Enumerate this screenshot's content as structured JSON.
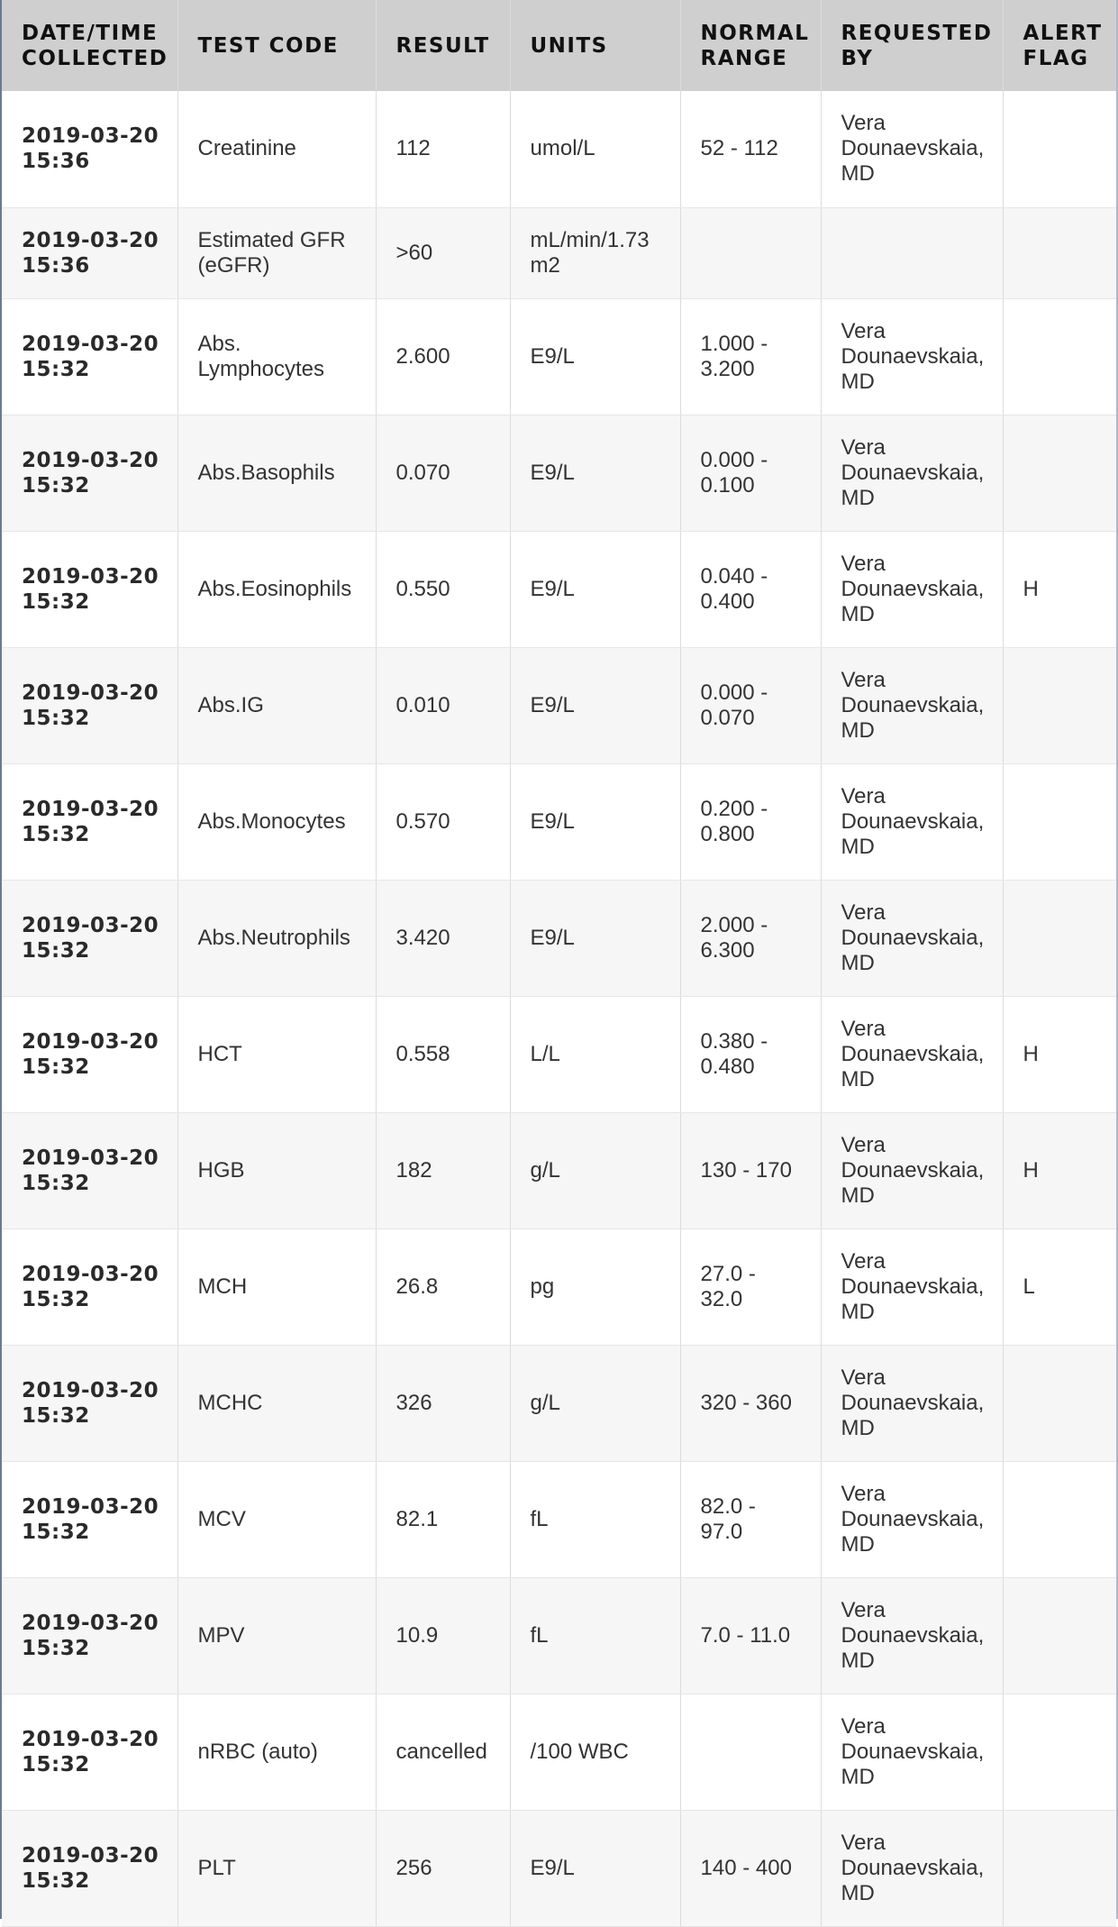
{
  "table": {
    "headers": [
      [
        "DATE/TIME",
        "COLLECTED"
      ],
      [
        "TEST CODE"
      ],
      [
        "RESULT"
      ],
      [
        "UNITS"
      ],
      [
        "NORMAL",
        "RANGE"
      ],
      [
        "REQUESTED",
        "BY"
      ],
      [
        "ALERT",
        "FLAG"
      ]
    ],
    "rows": [
      {
        "date": [
          "2019-03-20",
          "15:36"
        ],
        "test": [
          "Creatinine"
        ],
        "result": "112",
        "units": [
          "umol/L"
        ],
        "range": [
          "52 - 112"
        ],
        "requested": [
          "Vera",
          "Dounaevskaia,",
          "MD"
        ],
        "flag": ""
      },
      {
        "date": [
          "2019-03-20",
          "15:36"
        ],
        "test": [
          "Estimated GFR",
          "(eGFR)"
        ],
        "result": ">60",
        "units": [
          "mL/min/1.73",
          "m2"
        ],
        "range": [
          ""
        ],
        "requested": [
          ""
        ],
        "flag": ""
      },
      {
        "date": [
          "2019-03-20",
          "15:32"
        ],
        "test": [
          "Abs.",
          "Lymphocytes"
        ],
        "result": "2.600",
        "units": [
          "E9/L"
        ],
        "range": [
          "1.000 -",
          "3.200"
        ],
        "requested": [
          "Vera",
          "Dounaevskaia,",
          "MD"
        ],
        "flag": ""
      },
      {
        "date": [
          "2019-03-20",
          "15:32"
        ],
        "test": [
          "Abs.Basophils"
        ],
        "result": "0.070",
        "units": [
          "E9/L"
        ],
        "range": [
          "0.000 -",
          "0.100"
        ],
        "requested": [
          "Vera",
          "Dounaevskaia,",
          "MD"
        ],
        "flag": ""
      },
      {
        "date": [
          "2019-03-20",
          "15:32"
        ],
        "test": [
          "Abs.Eosinophils"
        ],
        "result": "0.550",
        "units": [
          "E9/L"
        ],
        "range": [
          "0.040 -",
          "0.400"
        ],
        "requested": [
          "Vera",
          "Dounaevskaia,",
          "MD"
        ],
        "flag": "H"
      },
      {
        "date": [
          "2019-03-20",
          "15:32"
        ],
        "test": [
          "Abs.IG"
        ],
        "result": "0.010",
        "units": [
          "E9/L"
        ],
        "range": [
          "0.000 -",
          "0.070"
        ],
        "requested": [
          "Vera",
          "Dounaevskaia,",
          "MD"
        ],
        "flag": ""
      },
      {
        "date": [
          "2019-03-20",
          "15:32"
        ],
        "test": [
          "Abs.Monocytes"
        ],
        "result": "0.570",
        "units": [
          "E9/L"
        ],
        "range": [
          "0.200 -",
          "0.800"
        ],
        "requested": [
          "Vera",
          "Dounaevskaia,",
          "MD"
        ],
        "flag": ""
      },
      {
        "date": [
          "2019-03-20",
          "15:32"
        ],
        "test": [
          "Abs.Neutrophils"
        ],
        "result": "3.420",
        "units": [
          "E9/L"
        ],
        "range": [
          "2.000 -",
          "6.300"
        ],
        "requested": [
          "Vera",
          "Dounaevskaia,",
          "MD"
        ],
        "flag": ""
      },
      {
        "date": [
          "2019-03-20",
          "15:32"
        ],
        "test": [
          "HCT"
        ],
        "result": "0.558",
        "units": [
          "L/L"
        ],
        "range": [
          "0.380 -",
          "0.480"
        ],
        "requested": [
          "Vera",
          "Dounaevskaia,",
          "MD"
        ],
        "flag": "H"
      },
      {
        "date": [
          "2019-03-20",
          "15:32"
        ],
        "test": [
          "HGB"
        ],
        "result": "182",
        "units": [
          "g/L"
        ],
        "range": [
          "130 - 170"
        ],
        "requested": [
          "Vera",
          "Dounaevskaia,",
          "MD"
        ],
        "flag": "H"
      },
      {
        "date": [
          "2019-03-20",
          "15:32"
        ],
        "test": [
          "MCH"
        ],
        "result": "26.8",
        "units": [
          "pg"
        ],
        "range": [
          "27.0 -",
          "32.0"
        ],
        "requested": [
          "Vera",
          "Dounaevskaia,",
          "MD"
        ],
        "flag": "L"
      },
      {
        "date": [
          "2019-03-20",
          "15:32"
        ],
        "test": [
          "MCHC"
        ],
        "result": "326",
        "units": [
          "g/L"
        ],
        "range": [
          "320 - 360"
        ],
        "requested": [
          "Vera",
          "Dounaevskaia,",
          "MD"
        ],
        "flag": ""
      },
      {
        "date": [
          "2019-03-20",
          "15:32"
        ],
        "test": [
          "MCV"
        ],
        "result": "82.1",
        "units": [
          "fL"
        ],
        "range": [
          "82.0 -",
          "97.0"
        ],
        "requested": [
          "Vera",
          "Dounaevskaia,",
          "MD"
        ],
        "flag": ""
      },
      {
        "date": [
          "2019-03-20",
          "15:32"
        ],
        "test": [
          "MPV"
        ],
        "result": "10.9",
        "units": [
          "fL"
        ],
        "range": [
          "7.0 - 11.0"
        ],
        "requested": [
          "Vera",
          "Dounaevskaia,",
          "MD"
        ],
        "flag": ""
      },
      {
        "date": [
          "2019-03-20",
          "15:32"
        ],
        "test": [
          "nRBC (auto)"
        ],
        "result": "cancelled",
        "units": [
          "/100 WBC"
        ],
        "range": [
          ""
        ],
        "requested": [
          "Vera",
          "Dounaevskaia,",
          "MD"
        ],
        "flag": ""
      },
      {
        "date": [
          "2019-03-20",
          "15:32"
        ],
        "test": [
          "PLT"
        ],
        "result": "256",
        "units": [
          "E9/L"
        ],
        "range": [
          "140 - 400"
        ],
        "requested": [
          "Vera",
          "Dounaevskaia,",
          "MD"
        ],
        "flag": ""
      }
    ]
  }
}
